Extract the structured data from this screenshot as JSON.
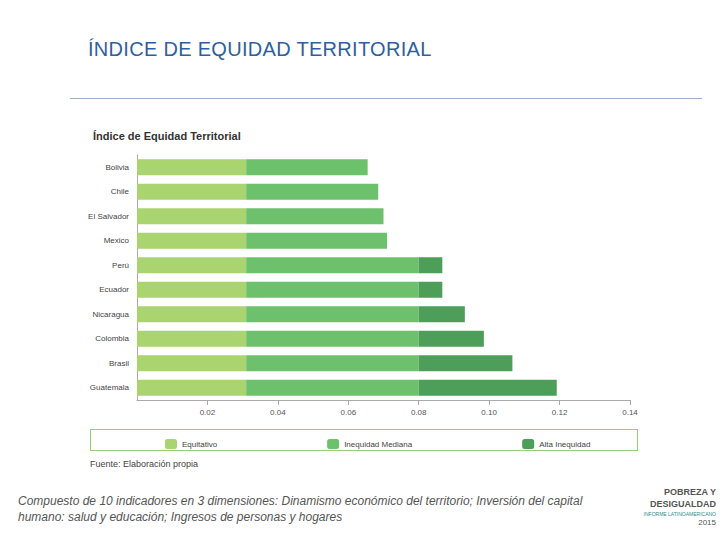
{
  "slide": {
    "title": "ÍNDICE DE EQUIDAD TERRITORIAL",
    "caption": "Compuesto de 10 indicadores en 3 dimensiones: Dinamismo económico del territorio; Inversión del capital humano: salud y educación; Ingresos de personas y hogares",
    "logo": [
      "POBREZA Y",
      "DESIGUALDAD",
      "INFORME LATINOAMERICANO",
      "2015"
    ]
  },
  "chart_data": {
    "type": "bar",
    "title": "Índice de Equidad Territorial",
    "orientation": "horizontal",
    "stacked": true,
    "grid": false,
    "legend": "bottom",
    "annotations": [
      "Fuente: Elaboración propia"
    ],
    "categories": [
      "Bolivia",
      "Chile",
      "El Salvador",
      "Mexico",
      "Perú",
      "Ecuador",
      "Nicaragua",
      "Colombia",
      "Brasil",
      "Guatemala"
    ],
    "series": [
      {
        "name": "Equitativo",
        "color": "#a9d46f",
        "values": [
          0.031,
          0.031,
          0.031,
          0.031,
          0.031,
          0.031,
          0.031,
          0.031,
          0.031,
          0.031
        ]
      },
      {
        "name": "Inequidad Mediana",
        "color": "#6dc06c",
        "values": [
          0.0345,
          0.0375,
          0.039,
          0.04,
          0.049,
          0.049,
          0.049,
          0.049,
          0.049,
          0.049
        ]
      },
      {
        "name": "Alta Inequidad",
        "color": "#4c9e58",
        "values": [
          0,
          0,
          0,
          0,
          0.0067,
          0.0067,
          0.0131,
          0.0185,
          0.0266,
          0.0392
        ]
      }
    ],
    "xlim": [
      0,
      0.14
    ],
    "xticks": [
      0.02,
      0.04,
      0.06,
      0.08,
      {
        "value": 0.1,
        "label": "0.10"
      },
      0.12,
      0.14
    ]
  }
}
